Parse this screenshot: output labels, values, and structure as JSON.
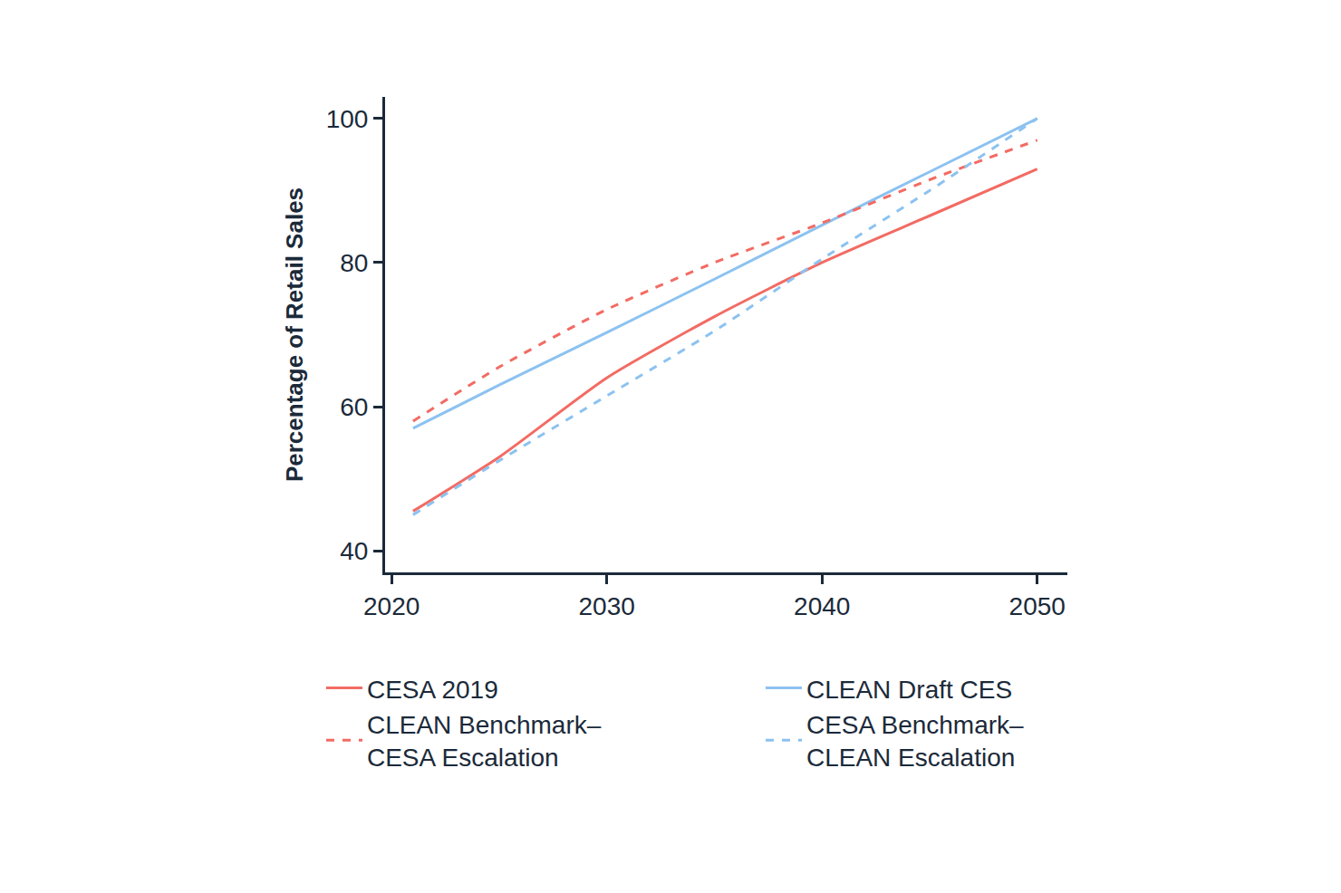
{
  "chart_data": {
    "type": "line",
    "y_label": "Percentage of Retail Sales",
    "x": [
      2021,
      2025,
      2030,
      2035,
      2040,
      2045,
      2050
    ],
    "series": [
      {
        "name": "CESA 2019",
        "color": "#f26b63",
        "line_style": "solid",
        "values": [
          45.5,
          53,
          64,
          72.5,
          80,
          86.5,
          93
        ]
      },
      {
        "name": "CLEAN Draft CES",
        "color": "#8cc2f0",
        "line_style": "solid",
        "values": [
          57,
          63,
          70.3,
          77.7,
          85.2,
          92.6,
          100
        ]
      },
      {
        "name": "CLEAN Benchmark–CESA Escalation",
        "color": "#f26b63",
        "line_style": "dash",
        "values": [
          58,
          65.5,
          73.5,
          80,
          85.5,
          91.5,
          97
        ]
      },
      {
        "name": "CESA Benchmark–CLEAN Escalation",
        "color": "#8cc2f0",
        "line_style": "dash",
        "values": [
          45,
          52.5,
          61.5,
          70.5,
          80.5,
          90,
          100
        ]
      }
    ],
    "xlim": [
      2019.7,
      2051.4
    ],
    "xticks": [
      2020,
      2030,
      2040,
      2050
    ],
    "ylim": [
      37,
      103
    ],
    "yticks": [
      40,
      60,
      80,
      100
    ],
    "grid": false,
    "legend": "bottom"
  }
}
